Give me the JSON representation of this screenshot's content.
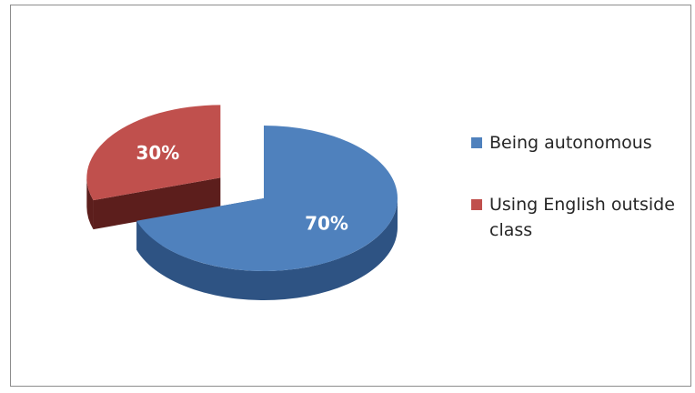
{
  "chart_data": {
    "type": "pie",
    "style": "3d-exploded",
    "title": "",
    "legend_position": "right",
    "slices": [
      {
        "name": "Being autonomous",
        "value": 70,
        "label": "70%",
        "color": "#4f81bd",
        "side_color": "#2e5383",
        "exploded": false
      },
      {
        "name": "Using English outside class",
        "value": 30,
        "label": "30%",
        "color": "#c0504d",
        "side_color": "#5c1e1c",
        "exploded": true
      }
    ]
  }
}
